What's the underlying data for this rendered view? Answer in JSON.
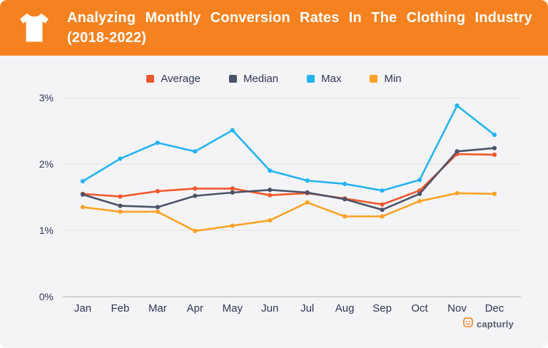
{
  "header": {
    "title": "Analyzing Monthly Conversion Rates In The Clothing Industry (2018-2022)",
    "bg_color": "#F6821F",
    "icon": "tshirt"
  },
  "chart_data": {
    "type": "line",
    "title": "Analyzing Monthly Conversion Rates In The Clothing Industry (2018-2022)",
    "categories": [
      "Jan",
      "Feb",
      "Mar",
      "Apr",
      "May",
      "Jun",
      "Jul",
      "Aug",
      "Sep",
      "Oct",
      "Nov",
      "Dec"
    ],
    "series": [
      {
        "name": "Average",
        "color": "#F2572B",
        "values": [
          1.55,
          1.51,
          1.59,
          1.63,
          1.63,
          1.53,
          1.56,
          1.48,
          1.39,
          1.6,
          2.15,
          2.14
        ]
      },
      {
        "name": "Median",
        "color": "#4B5268",
        "values": [
          1.54,
          1.37,
          1.35,
          1.52,
          1.57,
          1.61,
          1.57,
          1.47,
          1.31,
          1.55,
          2.19,
          2.24
        ]
      },
      {
        "name": "Max",
        "color": "#24B3F2",
        "values": [
          1.74,
          2.08,
          2.32,
          2.19,
          2.51,
          1.9,
          1.75,
          1.7,
          1.6,
          1.76,
          2.88,
          2.44
        ]
      },
      {
        "name": "Min",
        "color": "#FBA226",
        "values": [
          1.35,
          1.28,
          1.28,
          0.99,
          1.07,
          1.15,
          1.42,
          1.21,
          1.21,
          1.44,
          1.56,
          1.55
        ]
      }
    ],
    "xlabel": "",
    "ylabel": "",
    "yticks": [
      0,
      1,
      2,
      3
    ],
    "ytick_labels": [
      "0%",
      "1%",
      "2%",
      "3%"
    ],
    "ylim": [
      0,
      3.2
    ],
    "grid": true,
    "legend_position": "top",
    "unit": "%"
  },
  "footer": {
    "logo_text": "capturly"
  }
}
